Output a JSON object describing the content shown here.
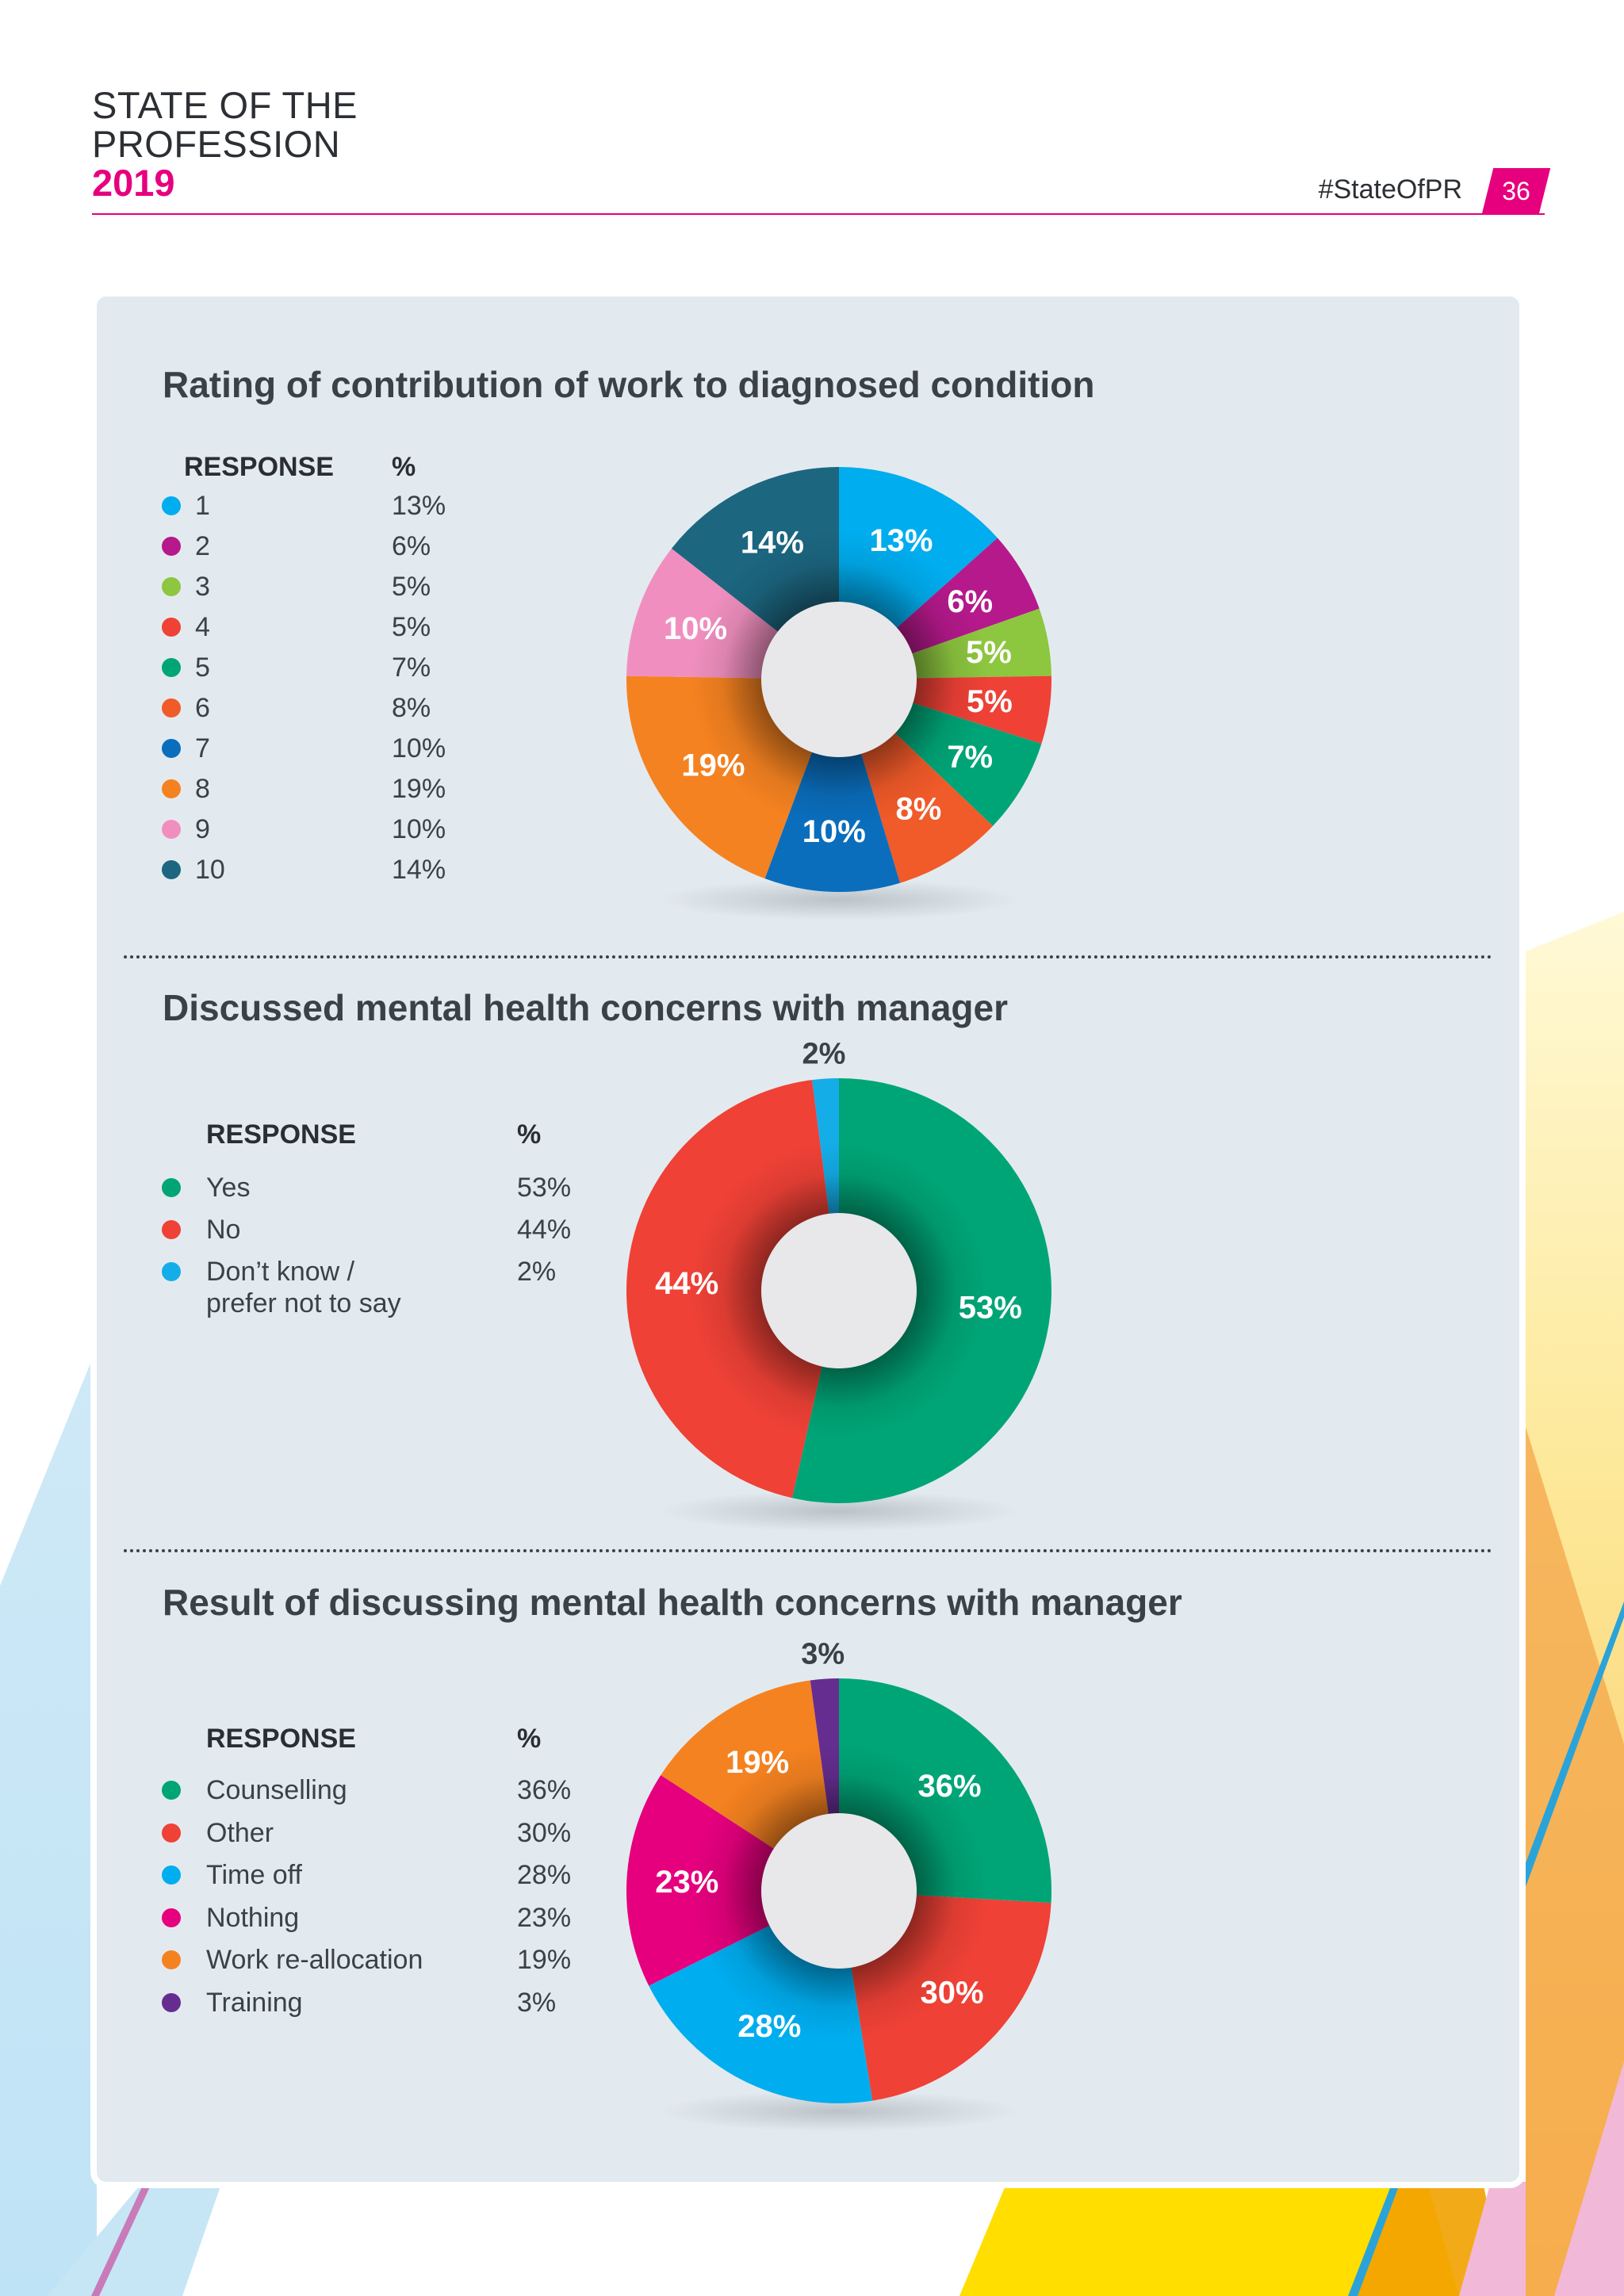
{
  "header": {
    "line1": "STATE OF THE",
    "line2": "PROFESSION",
    "year": "2019",
    "hashtag": "#StateOfPR",
    "page_number": "36"
  },
  "colors": {
    "brand_pink": "#e6007e",
    "panel_bg": "#e3eaef"
  },
  "sections": [
    {
      "title": "Rating of contribution of work to diagnosed condition",
      "response_header": "RESPONSE",
      "percent_header": "%",
      "legend": [
        {
          "label": "1",
          "value": "13%"
        },
        {
          "label": "2",
          "value": "6%"
        },
        {
          "label": "3",
          "value": "5%"
        },
        {
          "label": "4",
          "value": "5%"
        },
        {
          "label": "5",
          "value": "7%"
        },
        {
          "label": "6",
          "value": "8%"
        },
        {
          "label": "7",
          "value": "10%"
        },
        {
          "label": "8",
          "value": "19%"
        },
        {
          "label": "9",
          "value": "10%"
        },
        {
          "label": "10",
          "value": "14%"
        }
      ]
    },
    {
      "title": "Discussed mental health concerns with manager",
      "response_header": "RESPONSE",
      "percent_header": "%",
      "legend": [
        {
          "label": "Yes",
          "value": "53%"
        },
        {
          "label": "No",
          "value": "44%"
        },
        {
          "label": "Don’t know /\nprefer not to say",
          "value": "2%"
        }
      ]
    },
    {
      "title": "Result of discussing mental health concerns with manager",
      "response_header": "RESPONSE",
      "percent_header": "%",
      "legend": [
        {
          "label": "Counselling",
          "value": "36%"
        },
        {
          "label": "Other",
          "value": "30%"
        },
        {
          "label": "Time off",
          "value": "28%"
        },
        {
          "label": "Nothing",
          "value": "23%"
        },
        {
          "label": "Work re-allocation",
          "value": "19%"
        },
        {
          "label": "Training",
          "value": "3%"
        }
      ]
    }
  ],
  "chart_data": [
    {
      "type": "pie",
      "title": "Rating of contribution of work to diagnosed condition",
      "categories": [
        "1",
        "2",
        "3",
        "4",
        "5",
        "6",
        "7",
        "8",
        "9",
        "10"
      ],
      "values": [
        13,
        6,
        5,
        5,
        7,
        8,
        10,
        19,
        10,
        14
      ],
      "labels": [
        "13%",
        "6%",
        "5%",
        "5%",
        "7%",
        "8%",
        "10%",
        "19%",
        "10%",
        "14%"
      ],
      "colors": [
        "#00adef",
        "#b5198b",
        "#8dc63f",
        "#ef4136",
        "#00a577",
        "#f15a29",
        "#0a6ebd",
        "#f58220",
        "#f08fbf",
        "#1c6680"
      ]
    },
    {
      "type": "pie",
      "title": "Discussed mental health concerns with manager",
      "categories": [
        "Yes",
        "No",
        "Don’t know / prefer not to say"
      ],
      "values": [
        53,
        44,
        2
      ],
      "labels": [
        "53%",
        "44%",
        "2%"
      ],
      "colors": [
        "#00a577",
        "#ef4136",
        "#14ade8"
      ]
    },
    {
      "type": "pie",
      "title": "Result of discussing mental health concerns with manager",
      "categories": [
        "Counselling",
        "Other",
        "Time off",
        "Nothing",
        "Work re-allocation",
        "Training"
      ],
      "values": [
        36,
        30,
        28,
        23,
        19,
        3
      ],
      "labels": [
        "36%",
        "30%",
        "28%",
        "23%",
        "19%",
        "3%"
      ],
      "colors": [
        "#00a577",
        "#ef4136",
        "#00adef",
        "#e6007e",
        "#f58220",
        "#662d91"
      ]
    }
  ]
}
